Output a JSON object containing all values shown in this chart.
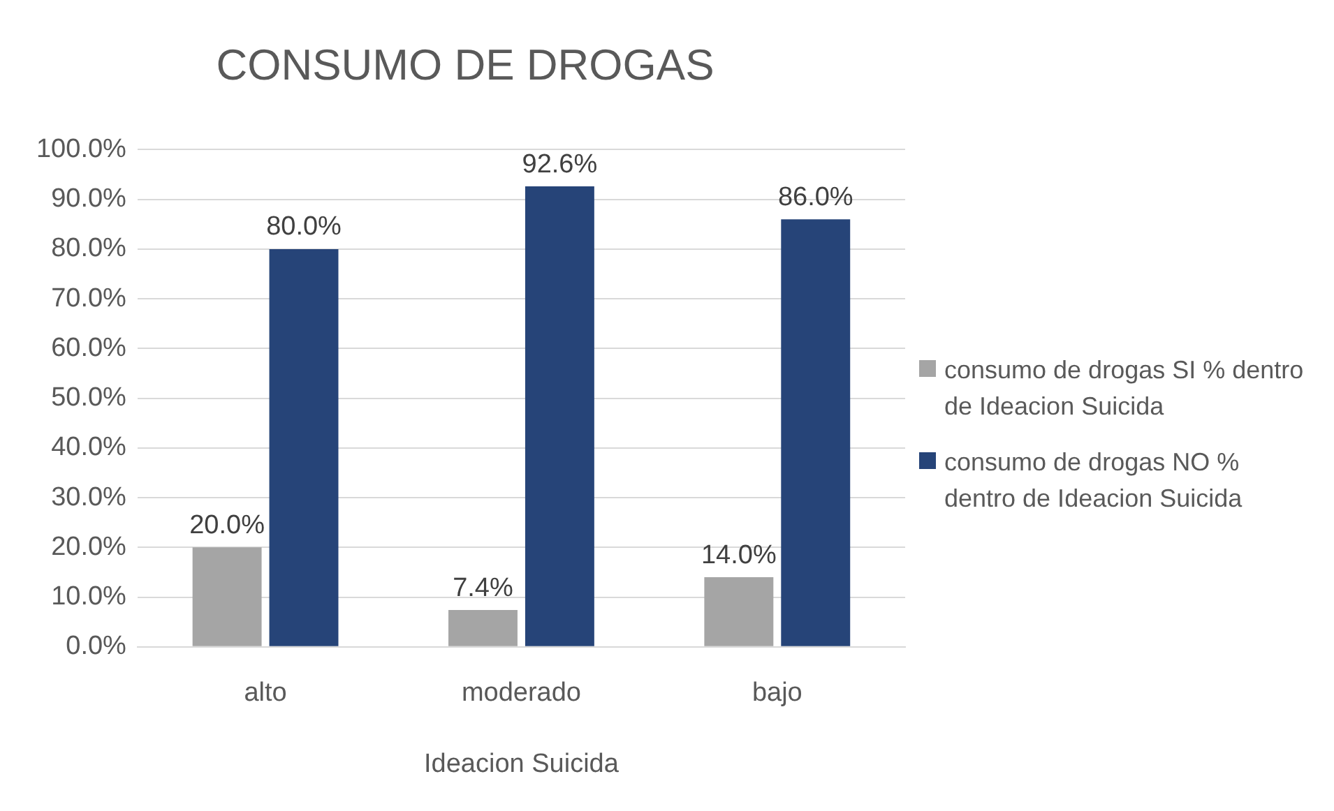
{
  "chart_data": {
    "type": "bar",
    "title": "CONSUMO DE DROGAS",
    "xlabel": "Ideacion Suicida",
    "categories": [
      "alto",
      "moderado",
      "bajo"
    ],
    "series": [
      {
        "name": "consumo de drogas SI % dentro de Ideacion Suicida",
        "color": "#a5a5a5",
        "values": [
          20,
          7.4,
          14
        ],
        "value_labels": [
          "20.0%",
          "7.4%",
          "14.0%"
        ]
      },
      {
        "name": "consumo de drogas NO % dentro de Ideacion Suicida",
        "color": "#264478",
        "values": [
          80,
          92.6,
          86
        ],
        "value_labels": [
          "80.0%",
          "92.6%",
          "86.0%"
        ]
      }
    ],
    "ylim": [
      0,
      100
    ],
    "yticks": [
      {
        "value": 0,
        "label": "0.0%"
      },
      {
        "value": 10,
        "label": "10.0%"
      },
      {
        "value": 20,
        "label": "20.0%"
      },
      {
        "value": 30,
        "label": "30.0%"
      },
      {
        "value": 40,
        "label": "40.0%"
      },
      {
        "value": 50,
        "label": "50.0%"
      },
      {
        "value": 60,
        "label": "60.0%"
      },
      {
        "value": 70,
        "label": "70.0%"
      },
      {
        "value": 80,
        "label": "80.0%"
      },
      {
        "value": 90,
        "label": "90.0%"
      },
      {
        "value": 100,
        "label": "100.0%"
      }
    ],
    "grid": "y",
    "legend": "right"
  }
}
